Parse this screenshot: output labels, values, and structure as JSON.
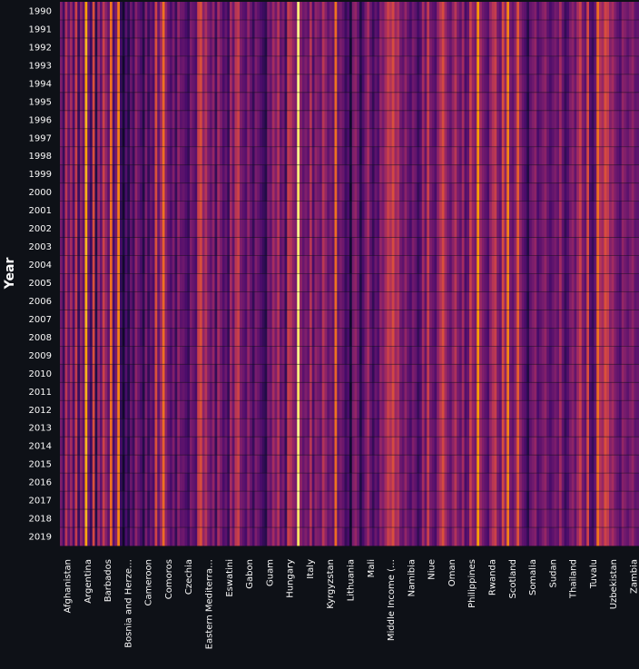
{
  "chart_data": {
    "type": "heatmap",
    "title": "",
    "xlabel": "",
    "ylabel": "Year",
    "years": [
      1990,
      1991,
      1992,
      1993,
      1994,
      1995,
      1996,
      1997,
      1998,
      1999,
      2000,
      2001,
      2002,
      2003,
      2004,
      2005,
      2006,
      2007,
      2008,
      2009,
      2010,
      2011,
      2012,
      2013,
      2014,
      2015,
      2016,
      2017,
      2018,
      2019
    ],
    "x_tick_labels": [
      "Afghanistan",
      "Argentina",
      "Barbados",
      "Bosnia and Herze…",
      "Cameroon",
      "Comoros",
      "Czechia",
      "Eastern Mediterra…",
      "Eswatini",
      "Gabon",
      "Guam",
      "Hungary",
      "Italy",
      "Kyrgyzstan",
      "Lithuania",
      "Mali",
      "Middle Income (…",
      "Namibia",
      "Niue",
      "Oman",
      "Philippines",
      "Rwanda",
      "Scotland",
      "Somalia",
      "Sudan",
      "Thailand",
      "Tuvalu",
      "Uzbekistan",
      "Zambia"
    ],
    "column_intensity": [
      0.35,
      0.2,
      0.5,
      0.3,
      0.45,
      0.25,
      0.55,
      0.2,
      0.4,
      0.3,
      0.85,
      0.3,
      0.2,
      0.6,
      0.15,
      0.45,
      0.3,
      0.55,
      0.4,
      0.3,
      0.7,
      0.25,
      0.35,
      0.75,
      0.2,
      0.1,
      0.25,
      0.15,
      0.3,
      0.2,
      0.4,
      0.3,
      0.25,
      0.15,
      0.35,
      0.2,
      0.3,
      0.25,
      0.6,
      0.3,
      0.45,
      0.7,
      0.4,
      0.3,
      0.25,
      0.35,
      0.2,
      0.4,
      0.3,
      0.3,
      0.25,
      0.2,
      0.35,
      0.3,
      0.25,
      0.55,
      0.6,
      0.4,
      0.5,
      0.35,
      0.3,
      0.4,
      0.2,
      0.45,
      0.35,
      0.25,
      0.3,
      0.2,
      0.45,
      0.3,
      0.5,
      0.55,
      0.35,
      0.3,
      0.25,
      0.4,
      0.3,
      0.2,
      0.35,
      0.3,
      0.25,
      0.2,
      0.15,
      0.35,
      0.3,
      0.45,
      0.35,
      0.5,
      0.3,
      0.35,
      0.2,
      0.55,
      0.5,
      0.4,
      0.35,
      1.0,
      0.4,
      0.3,
      0.35,
      0.3,
      0.5,
      0.25,
      0.4,
      0.35,
      0.3,
      0.5,
      0.4,
      0.3,
      0.35,
      0.3,
      0.7,
      0.3,
      0.35,
      0.3,
      0.2,
      0.25,
      0.1,
      0.35,
      0.4,
      0.3,
      0.15,
      0.25,
      0.35,
      0.45,
      0.3,
      0.2,
      0.3,
      0.25,
      0.4,
      0.35,
      0.45,
      0.55,
      0.5,
      0.6,
      0.45,
      0.5,
      0.35,
      0.3,
      0.4,
      0.3,
      0.25,
      0.35,
      0.3,
      0.2,
      0.25,
      0.45,
      0.3,
      0.55,
      0.35,
      0.3,
      0.25,
      0.4,
      0.5,
      0.6,
      0.45,
      0.35,
      0.3,
      0.4,
      0.5,
      0.35,
      0.3,
      0.45,
      0.25,
      0.3,
      0.55,
      0.4,
      0.35,
      0.8,
      0.45,
      0.35,
      0.3,
      0.25,
      0.4,
      0.5,
      0.55,
      0.35,
      0.3,
      0.6,
      0.4,
      0.75,
      0.35,
      0.3,
      0.4,
      0.65,
      0.4,
      0.3,
      0.25,
      0.15,
      0.3,
      0.35,
      0.4,
      0.25,
      0.3,
      0.35,
      0.4,
      0.3,
      0.25,
      0.3,
      0.35,
      0.3,
      0.45,
      0.3,
      0.2,
      0.25,
      0.35,
      0.4,
      0.3,
      0.45,
      0.55,
      0.35,
      0.3,
      0.6,
      0.25,
      0.2,
      0.3,
      0.7,
      0.5,
      0.45,
      0.6,
      0.55,
      0.4,
      0.45,
      0.35,
      0.3,
      0.25,
      0.4,
      0.35,
      0.3,
      0.35,
      0.4,
      0.3,
      0.3
    ],
    "color_scale": [
      "#000004",
      "#1b0c41",
      "#4a0c6b",
      "#781c6d",
      "#a52c60",
      "#cf4446",
      "#ed6925",
      "#fb9b06",
      "#f7d13d",
      "#fcffa4"
    ]
  },
  "background": "#0e1117",
  "text_color": "#fafafa"
}
